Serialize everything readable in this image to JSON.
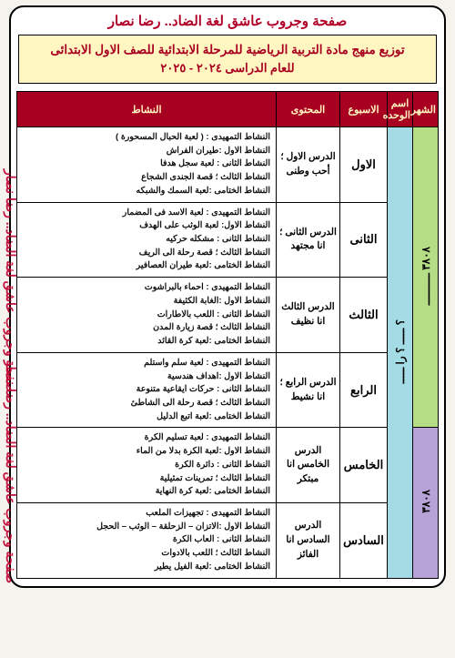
{
  "header": "صفحة وجروب عاشق لغة الضاد.. رضا نصار",
  "title_line1": "توزيع منهج مادة التربية الرياضية للمرحلة الابتدائية للصف الاول الابتدائى",
  "title_line2": "للعام الدراسى  ٢٠٢٤  -  ٢٠٢٥",
  "cols": {
    "month": "الشهر",
    "unit": "اسم الوحده",
    "week": "الاسبوع",
    "content": "المحتوى",
    "activity": "النشاط"
  },
  "months": [
    {
      "label": "٣٨٠٨ ــــــــــ",
      "span": 4
    },
    {
      "label": "٣٨٠٨",
      "span": 2
    }
  ],
  "units": [
    {
      "label": "؟ ـــــ ؟ را ـــــ",
      "span": 6
    }
  ],
  "rows": [
    {
      "week": "الاول",
      "content": "الدرس الاول ؛ أحب وطنى",
      "activities": [
        "النشاط التمهيدى : ( لعبة الحبال المسحورة )",
        "النشاط الاول :طيران الفراش",
        "النشاط الثانى : لعبة سجل هدفا",
        "النشاط الثالث ؛ قصة الجندى الشجاع",
        "النشاط الختامى :لعبة السمك والشبكه"
      ]
    },
    {
      "week": "الثانى",
      "content": "الدرس الثانى ؛ انا مجتهد",
      "activities": [
        "النشاط التمهيدى : لعبة الاسد فى المضمار",
        "النشاط الاول: لعبة الوثب على الهدف",
        "النشاط الثانى : مشكله حركيه",
        "النشاط الثالث ؛ قصة رحلة الى الريف",
        "النشاط الختامى :لعبة طيران العصافير"
      ]
    },
    {
      "week": "الثالث",
      "content": "الدرس الثالث انا نظيف",
      "activities": [
        "النشاط التمهيدى : احماء بالبراشوت",
        "النشاط الاول :الغابة الكثيفة",
        "النشاط الثانى : اللعب بالاطارات",
        "النشاط الثالث ؛ قصة زيارة المدن",
        "النشاط الختامى :لعبة كرة القائد"
      ]
    },
    {
      "week": "الرابع",
      "content": "الدرس الرابع ؛ انا نشيط",
      "activities": [
        "النشاط التمهيدى : لعبة سلم واستلم",
        "النشاط الاول :اهداف هندسية",
        "النشاط الثانى : حركات ايقاعية متنوعة",
        "النشاط الثالث ؛ قصة رحلة الى الشاطئ",
        "النشاط الختامى :لعبة اتبع الدليل"
      ]
    },
    {
      "week": "الخامس",
      "content": "الدرس الخامس انا مبتكر",
      "activities": [
        "النشاط التمهيدى : لعبة تسليم الكرة",
        "النشاط الاول :لعبة الكرة بدلا من الماء",
        "النشاط الثانى : دائرة الكرة",
        "النشاط الثالث ؛ تمرينات تمثيلية",
        "النشاط الختامى :لعبة كرة النهاية"
      ]
    },
    {
      "week": "السادس",
      "content": "الدرس السادس انا الفائز",
      "activities": [
        "النشاط التمهيدى : تجهيزات الملعب",
        "النشاط الاول :الاتزان – الزحلقة – الوثب – الحجل",
        "النشاط الثانى : العاب الكرة",
        "النشاط الثالث ؛ اللعب بالادوات",
        "النشاط الختامى :لعبة الفيل يطير"
      ]
    }
  ],
  "watermark": "صفحة وجروب عاشق لغة الضاد.. رضا نصار"
}
